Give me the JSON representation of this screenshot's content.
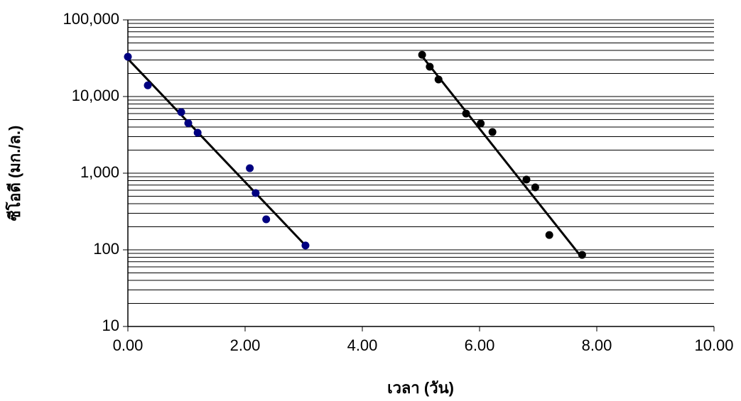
{
  "chart_data": {
    "type": "scatter",
    "log_y": true,
    "grid": true,
    "x_label": "เวลา (วัน)",
    "y_label": "ซีโอดี (มก./ล.)",
    "xlim": [
      0,
      10
    ],
    "xticks": [
      {
        "value": 0,
        "label": "0.00"
      },
      {
        "value": 2,
        "label": "2.00"
      },
      {
        "value": 4,
        "label": "4.00"
      },
      {
        "value": 6,
        "label": "6.00"
      },
      {
        "value": 8,
        "label": "8.00"
      },
      {
        "value": 10,
        "label": "10.00"
      }
    ],
    "ylim": [
      10,
      100000
    ],
    "yticks": [
      10,
      100,
      {
        "value": 1000,
        "label": "1,000"
      },
      {
        "value": 10000,
        "label": "10,000"
      },
      {
        "value": 100000,
        "label": "100,000"
      }
    ],
    "minor_gridlines": [
      20,
      30,
      40,
      50,
      60,
      70,
      80,
      90,
      200,
      300,
      400,
      500,
      600,
      700,
      800,
      900,
      2000,
      3000,
      4000,
      5000,
      6000,
      7000,
      8000,
      9000,
      20000,
      30000,
      40000,
      50000,
      60000,
      70000,
      80000,
      90000
    ],
    "series": [
      {
        "color": "#000080",
        "x": [
          0.0,
          0.34,
          0.91,
          1.03,
          1.19,
          2.08,
          2.18,
          2.36,
          3.03
        ],
        "values": [
          33000,
          14000,
          6250,
          4500,
          3370,
          1160,
          551,
          250,
          114
        ]
      },
      {
        "color": "#000000",
        "x": [
          5.02,
          5.15,
          5.3,
          5.77,
          6.02,
          6.22,
          6.8,
          6.95,
          7.19,
          7.75
        ],
        "values": [
          35000,
          24500,
          16700,
          6000,
          4450,
          3440,
          826,
          653,
          156,
          86
        ]
      }
    ],
    "trendlines": [
      {
        "color": "#000000",
        "x": [
          0.0,
          3.03
        ],
        "values": [
          31000,
          114
        ]
      },
      {
        "color": "#000000",
        "x": [
          5.0,
          7.73
        ],
        "values": [
          35000,
          82
        ]
      }
    ]
  }
}
